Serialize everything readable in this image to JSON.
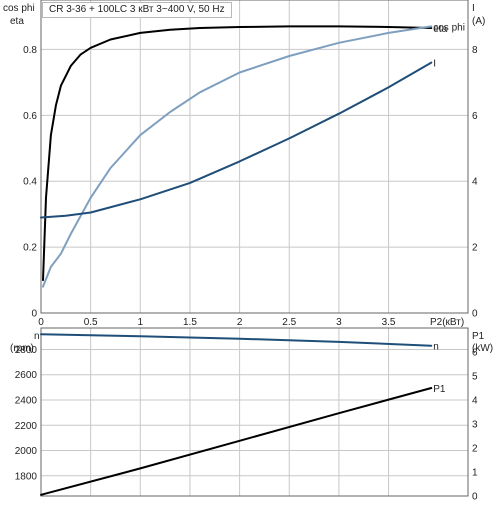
{
  "title": "CR 3-36 + 100LC    3 кВт   3~400 V, 50 Hz",
  "colors": {
    "eta": "#000000",
    "cos_phi": "#7f9fbf",
    "current": "#1f4e79",
    "speed": "#1f4e79",
    "power": "#000000",
    "grid": "#c8c8c8",
    "frame": "#666666"
  },
  "chart_data": [
    {
      "type": "line",
      "panel": "top",
      "left_axis": {
        "labels": [
          "cos phi",
          "eta"
        ],
        "ticks": [
          0,
          0.2,
          0.4,
          0.6,
          0.8
        ],
        "ylim": [
          0,
          0.95
        ]
      },
      "right_axis": {
        "labels": [
          "I",
          "(A)"
        ],
        "ticks": [
          0,
          2,
          4,
          6,
          8
        ],
        "ylim": [
          0,
          9.5
        ]
      },
      "x_axis": {
        "label": "P2(кВт)",
        "ticks": [
          0,
          0.5,
          1,
          1.5,
          2,
          2.5,
          3,
          3.5
        ],
        "xlim": [
          0,
          4.3
        ]
      },
      "grid": true,
      "series": [
        {
          "name": "eta",
          "axis": "left",
          "color": "#000000",
          "x": [
            0.02,
            0.05,
            0.1,
            0.15,
            0.2,
            0.3,
            0.4,
            0.5,
            0.7,
            1.0,
            1.3,
            1.6,
            2.0,
            2.5,
            3.0,
            3.5,
            3.93
          ],
          "y": [
            0.1,
            0.35,
            0.54,
            0.63,
            0.69,
            0.75,
            0.785,
            0.805,
            0.83,
            0.85,
            0.86,
            0.865,
            0.868,
            0.87,
            0.87,
            0.868,
            0.865
          ]
        },
        {
          "name": "cos phi",
          "axis": "left",
          "color": "#7f9fbf",
          "x": [
            0.02,
            0.1,
            0.2,
            0.3,
            0.5,
            0.7,
            1.0,
            1.3,
            1.6,
            2.0,
            2.5,
            3.0,
            3.5,
            3.93
          ],
          "y": [
            0.08,
            0.14,
            0.18,
            0.24,
            0.35,
            0.44,
            0.54,
            0.61,
            0.67,
            0.73,
            0.78,
            0.82,
            0.85,
            0.87
          ]
        },
        {
          "name": "I",
          "axis": "right",
          "color": "#1f4e79",
          "x": [
            0.0,
            0.25,
            0.5,
            1.0,
            1.5,
            2.0,
            2.5,
            3.0,
            3.5,
            3.93
          ],
          "y": [
            2.9,
            2.95,
            3.05,
            3.45,
            3.95,
            4.6,
            5.3,
            6.05,
            6.85,
            7.6
          ]
        }
      ]
    },
    {
      "type": "line",
      "panel": "bottom",
      "left_axis": {
        "labels": [
          "n",
          "(rpm)"
        ],
        "ticks": [
          1800,
          2000,
          2200,
          2400,
          2600,
          2800
        ],
        "ylim": [
          1640,
          2970
        ]
      },
      "right_axis": {
        "labels": [
          "P1",
          "(kW)"
        ],
        "ticks": [
          0,
          1,
          2,
          3,
          4,
          5,
          6
        ],
        "ylim": [
          0,
          7
        ]
      },
      "x_axis": {
        "label": "",
        "ticks": [],
        "xlim": [
          0,
          4.3
        ]
      },
      "grid": true,
      "series": [
        {
          "name": "n",
          "axis": "left",
          "color": "#1f4e79",
          "x": [
            0.0,
            1.0,
            2.0,
            3.0,
            3.93
          ],
          "y": [
            2920,
            2905,
            2885,
            2860,
            2830
          ]
        },
        {
          "name": "P1",
          "axis": "right",
          "color": "#000000",
          "x": [
            0.0,
            1.0,
            2.0,
            3.0,
            3.93
          ],
          "y": [
            0.05,
            1.15,
            2.3,
            3.45,
            4.5
          ]
        }
      ]
    }
  ]
}
